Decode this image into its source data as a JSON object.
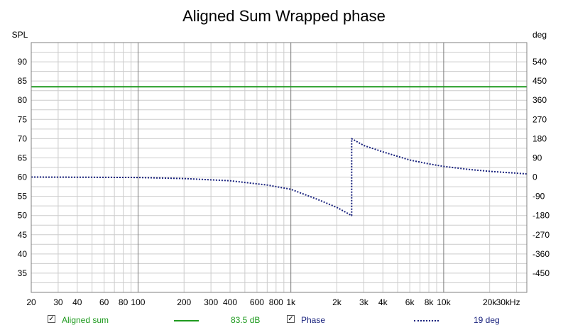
{
  "chart_data": {
    "type": "line",
    "title": "Aligned Sum Wrapped phase",
    "left_axis": {
      "label": "SPL",
      "range": [
        30,
        95
      ],
      "ticks": [
        35,
        40,
        45,
        50,
        55,
        60,
        65,
        70,
        75,
        80,
        85,
        90
      ],
      "tick_labels": [
        "35",
        "40",
        "45",
        "50",
        "55",
        "60",
        "65",
        "70",
        "75",
        "80",
        "85",
        "90"
      ]
    },
    "right_axis": {
      "label": "deg",
      "range": [
        -540,
        630
      ],
      "ticks": [
        -450,
        -360,
        -270,
        -180,
        -90,
        0,
        90,
        180,
        270,
        360,
        450,
        540
      ],
      "tick_labels": [
        "-450",
        "-360",
        "-270",
        "-180",
        "-90",
        "0",
        "90",
        "180",
        "270",
        "360",
        "450",
        "540"
      ]
    },
    "x_axis": {
      "scale": "log",
      "range": [
        20,
        35000
      ],
      "unit": "Hz",
      "ticks": [
        20,
        30,
        40,
        60,
        80,
        100,
        200,
        300,
        400,
        600,
        800,
        1000,
        2000,
        3000,
        4000,
        6000,
        8000,
        10000,
        20000,
        30000
      ],
      "tick_labels": [
        "20",
        "30",
        "40",
        "60",
        "80",
        "100",
        "200",
        "300",
        "400",
        "600",
        "800",
        "1k",
        "2k",
        "3k",
        "4k",
        "6k",
        "8k",
        "10k",
        "20k",
        "30kHz"
      ]
    },
    "grid": true,
    "legend_position": "bottom",
    "series": [
      {
        "name": "Aligned sum",
        "axis": "left",
        "color": "#1e9a1e",
        "style": "solid",
        "legend_value": "83.5 dB",
        "x": [
          20,
          35000
        ],
        "y": [
          83.5,
          83.5
        ]
      },
      {
        "name": "Phase",
        "axis": "right",
        "color": "#1a237e",
        "style": "dotted",
        "legend_value": "19 deg",
        "x": [
          20,
          50,
          100,
          200,
          400,
          700,
          1000,
          1500,
          2000,
          2500,
          2500,
          3000,
          4000,
          6000,
          8000,
          10000,
          15000,
          20000,
          25000,
          35000
        ],
        "y": [
          0,
          -1,
          -2,
          -7,
          -17,
          -37,
          -57,
          -105,
          -142,
          -180,
          180,
          148,
          118,
          80,
          62,
          50,
          35,
          27,
          22,
          15
        ]
      }
    ]
  },
  "legend": {
    "aligned_sum_label": "Aligned sum",
    "aligned_sum_value": "83.5 dB",
    "phase_label": "Phase",
    "phase_value": "19 deg",
    "check_mark": "✓"
  }
}
